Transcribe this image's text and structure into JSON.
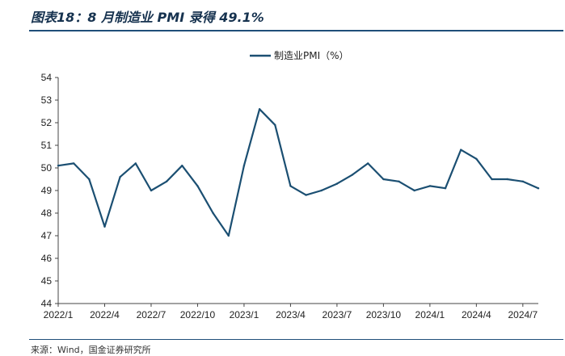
{
  "title": "图表18：8 月制造业 PMI 录得 49.1%",
  "source": "来源：Wind，国金证券研究所",
  "chart_data": {
    "type": "line",
    "title": "",
    "legend_position": "top-center",
    "grid": false,
    "ylim": [
      44,
      54
    ],
    "yticks": [
      "44",
      "45",
      "46",
      "47",
      "48",
      "49",
      "50",
      "51",
      "52",
      "53",
      "54"
    ],
    "xtick_labels": [
      "2022/1",
      "2022/4",
      "2022/7",
      "2022/10",
      "2023/1",
      "2023/4",
      "2023/7",
      "2023/10",
      "2024/1",
      "2024/4",
      "2024/7"
    ],
    "x": [
      "2022/1",
      "2022/2",
      "2022/3",
      "2022/4",
      "2022/5",
      "2022/6",
      "2022/7",
      "2022/8",
      "2022/9",
      "2022/10",
      "2022/11",
      "2022/12",
      "2023/1",
      "2023/2",
      "2023/3",
      "2023/4",
      "2023/5",
      "2023/6",
      "2023/7",
      "2023/8",
      "2023/9",
      "2023/10",
      "2023/11",
      "2023/12",
      "2024/1",
      "2024/2",
      "2024/3",
      "2024/4",
      "2024/5",
      "2024/6",
      "2024/7",
      "2024/8"
    ],
    "series": [
      {
        "name": "制造业PMI（%）",
        "color": "#1b4f72",
        "values": [
          50.1,
          50.2,
          49.5,
          47.4,
          49.6,
          50.2,
          49.0,
          49.4,
          50.1,
          49.2,
          48.0,
          47.0,
          50.1,
          52.6,
          51.9,
          49.2,
          48.8,
          49.0,
          49.3,
          49.7,
          50.2,
          49.5,
          49.4,
          49.0,
          49.2,
          49.1,
          50.8,
          50.4,
          49.5,
          49.5,
          49.4,
          49.1
        ]
      }
    ]
  }
}
